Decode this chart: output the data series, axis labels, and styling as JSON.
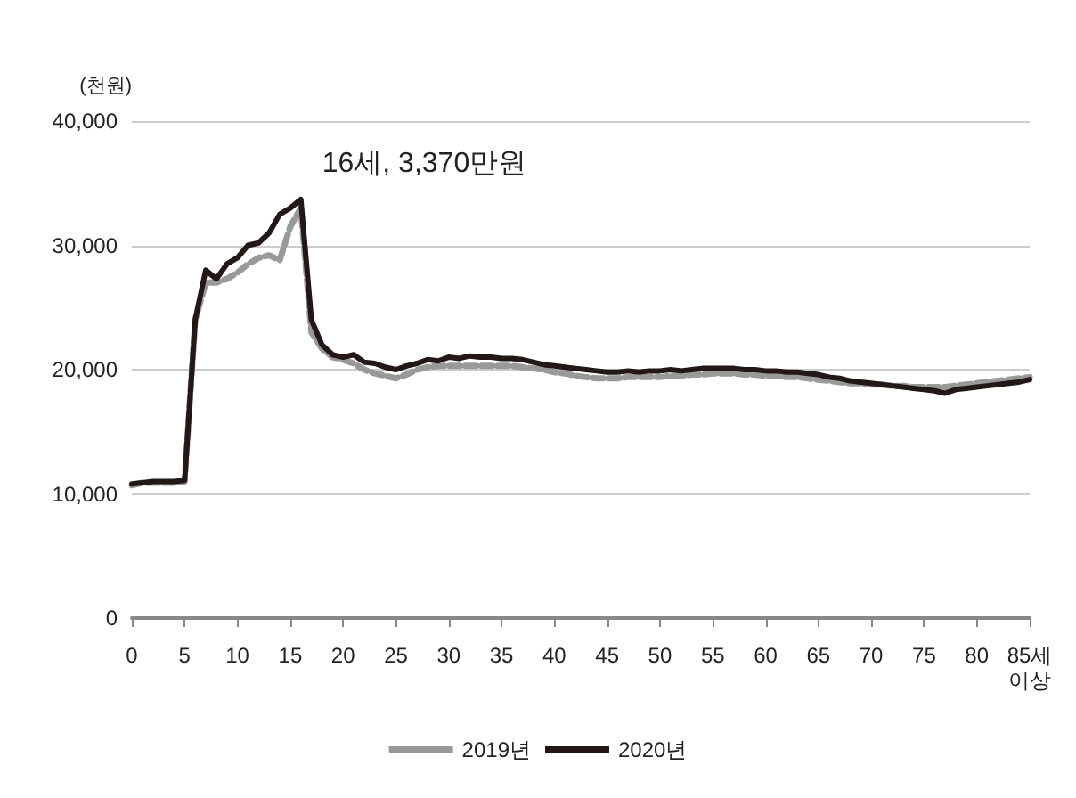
{
  "chart_data": {
    "type": "line",
    "ylabel": "(천원)",
    "x": [
      0,
      1,
      2,
      3,
      4,
      5,
      6,
      7,
      8,
      9,
      10,
      11,
      12,
      13,
      14,
      15,
      16,
      17,
      18,
      19,
      20,
      21,
      22,
      23,
      24,
      25,
      26,
      27,
      28,
      29,
      30,
      31,
      32,
      33,
      34,
      35,
      36,
      37,
      38,
      39,
      40,
      41,
      42,
      43,
      44,
      45,
      46,
      47,
      48,
      49,
      50,
      51,
      52,
      53,
      54,
      55,
      56,
      57,
      58,
      59,
      60,
      61,
      62,
      63,
      64,
      65,
      66,
      67,
      68,
      69,
      70,
      71,
      72,
      73,
      74,
      75,
      76,
      77,
      78,
      79,
      80,
      81,
      82,
      83,
      84,
      85
    ],
    "series": [
      {
        "name": "2019년",
        "color": "#999999",
        "line_style": "dashed",
        "values": [
          10700,
          10900,
          10900,
          10900,
          10900,
          11000,
          24000,
          27000,
          27000,
          27300,
          27800,
          28500,
          29000,
          29200,
          28800,
          31500,
          33000,
          23000,
          21700,
          21000,
          20800,
          20500,
          20000,
          19700,
          19500,
          19300,
          19600,
          20000,
          20200,
          20300,
          20300,
          20300,
          20300,
          20300,
          20300,
          20300,
          20300,
          20200,
          20100,
          20000,
          19800,
          19700,
          19500,
          19400,
          19300,
          19300,
          19300,
          19400,
          19400,
          19400,
          19400,
          19500,
          19500,
          19600,
          19600,
          19700,
          19700,
          19700,
          19600,
          19600,
          19500,
          19500,
          19400,
          19400,
          19300,
          19200,
          19100,
          19000,
          18900,
          18900,
          18800,
          18800,
          18700,
          18700,
          18600,
          18600,
          18600,
          18600,
          18700,
          18800,
          18900,
          19000,
          19100,
          19200,
          19300,
          19400
        ]
      },
      {
        "name": "2020년",
        "color": "#231815",
        "line_style": "solid",
        "values": [
          10800,
          10900,
          11000,
          11000,
          11000,
          11100,
          24000,
          28000,
          27300,
          28500,
          29000,
          30000,
          30200,
          31000,
          32500,
          33000,
          33700,
          24000,
          22000,
          21200,
          21000,
          21200,
          20600,
          20500,
          20200,
          20000,
          20300,
          20500,
          20800,
          20700,
          21000,
          20900,
          21100,
          21000,
          21000,
          20900,
          20900,
          20800,
          20600,
          20400,
          20300,
          20200,
          20100,
          20000,
          19900,
          19800,
          19800,
          19900,
          19800,
          19900,
          19900,
          20000,
          19900,
          20000,
          20100,
          20100,
          20100,
          20100,
          20000,
          20000,
          19900,
          19900,
          19800,
          19800,
          19700,
          19600,
          19400,
          19300,
          19100,
          19000,
          18900,
          18800,
          18700,
          18600,
          18500,
          18400,
          18300,
          18100,
          18400,
          18500,
          18600,
          18700,
          18800,
          18900,
          19000,
          19200
        ]
      }
    ],
    "xlim": [
      0,
      85
    ],
    "xticks": [
      0,
      5,
      10,
      15,
      20,
      25,
      30,
      35,
      40,
      45,
      50,
      55,
      60,
      65,
      70,
      75,
      80,
      {
        "value": 85,
        "label": "85세\n이상"
      }
    ],
    "ylim": [
      0,
      40000
    ],
    "yticks": [
      0,
      {
        "value": 10000,
        "label": "10,000"
      },
      {
        "value": 20000,
        "label": "20,000"
      },
      {
        "value": 30000,
        "label": "30,000"
      },
      {
        "value": 40000,
        "label": "40,000"
      }
    ],
    "annotations": [
      {
        "text": "16세, 3,370만원",
        "x": 16,
        "y": 33700
      }
    ],
    "grid": "y",
    "legend": "bottom",
    "marker": "none"
  }
}
